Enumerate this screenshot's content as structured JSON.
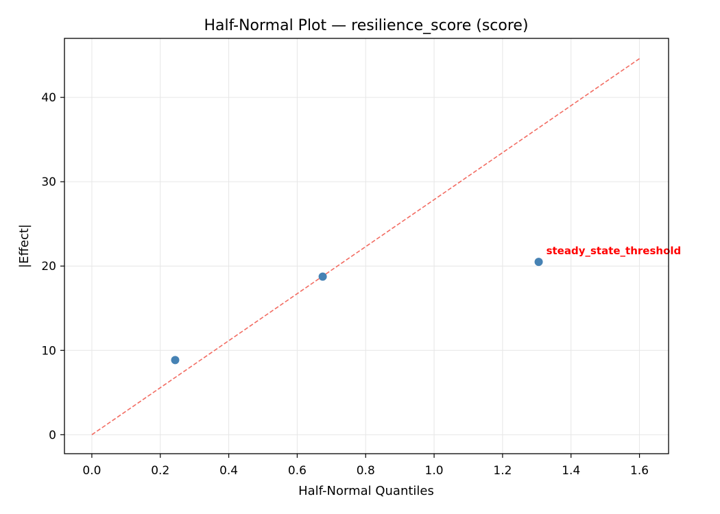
{
  "chart_data": {
    "type": "scatter",
    "title": "Half-Normal Plot — resilience_score (score)",
    "xlabel": "Half-Normal Quantiles",
    "ylabel": "|Effect|",
    "xlim": [
      -0.08,
      1.685
    ],
    "ylim": [
      -2.25,
      47.0
    ],
    "xticks": [
      0.0,
      0.2,
      0.4,
      0.6,
      0.8,
      1.0,
      1.2,
      1.4,
      1.6
    ],
    "xtick_labels": [
      "0.0",
      "0.2",
      "0.4",
      "0.6",
      "0.8",
      "1.0",
      "1.2",
      "1.4",
      "1.6"
    ],
    "yticks": [
      0,
      10,
      20,
      30,
      40
    ],
    "ytick_labels": [
      "0",
      "10",
      "20",
      "30",
      "40"
    ],
    "grid": true,
    "points": [
      {
        "x": 0.2435,
        "y": 8.85
      },
      {
        "x": 0.6745,
        "y": 18.75
      },
      {
        "x": 1.3055,
        "y": 20.5,
        "label": "steady_state_threshold"
      }
    ],
    "reference_line": {
      "x": [
        0.0,
        1.6
      ],
      "y": [
        0.0,
        44.6
      ],
      "style": "dashed"
    },
    "colors": {
      "points": "#4682b4",
      "reference_line": "#f26b61",
      "annotation": "#ff0000",
      "grid": "#e6e6e6",
      "axes": "#000000"
    }
  }
}
